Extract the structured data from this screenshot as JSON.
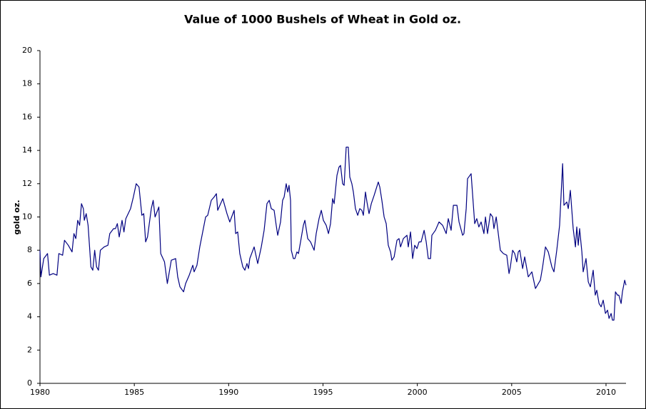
{
  "chart_data": {
    "type": "line",
    "title": "Value of 1000 Bushels of Wheat in Gold oz.",
    "y_label": "gold oz.",
    "color": "#000080",
    "xlim": [
      1980,
      2011.06
    ],
    "xticks": [
      1980,
      1985,
      1990,
      1995,
      2000,
      2005,
      2010
    ],
    "ylim": [
      0,
      20
    ],
    "yticks": [
      0,
      2,
      4,
      6,
      8,
      10,
      12,
      14,
      16,
      18,
      20
    ],
    "grid": false,
    "x": [
      1980.0,
      1980.05,
      1980.2,
      1980.4,
      1980.5,
      1980.7,
      1980.9,
      1981.0,
      1981.2,
      1981.3,
      1981.5,
      1981.7,
      1981.8,
      1981.9,
      1982.0,
      1982.1,
      1982.2,
      1982.3,
      1982.35,
      1982.45,
      1982.55,
      1982.7,
      1982.8,
      1982.9,
      1983.0,
      1983.1,
      1983.2,
      1983.4,
      1983.6,
      1983.7,
      1983.9,
      1984.0,
      1984.1,
      1984.2,
      1984.35,
      1984.45,
      1984.55,
      1984.8,
      1984.95,
      1985.1,
      1985.25,
      1985.4,
      1985.5,
      1985.6,
      1985.7,
      1985.9,
      1986.0,
      1986.1,
      1986.3,
      1986.4,
      1986.6,
      1986.75,
      1986.96,
      1987.19,
      1987.3,
      1987.42,
      1987.61,
      1987.72,
      1987.91,
      1988.1,
      1988.17,
      1988.32,
      1988.47,
      1988.78,
      1988.89,
      1989.08,
      1989.23,
      1989.35,
      1989.42,
      1989.69,
      1989.91,
      1990.06,
      1990.29,
      1990.37,
      1990.48,
      1990.59,
      1990.75,
      1990.86,
      1990.97,
      1991.05,
      1991.12,
      1991.35,
      1991.54,
      1991.73,
      1991.88,
      1992.03,
      1992.15,
      1992.26,
      1992.41,
      1992.52,
      1992.6,
      1992.75,
      1992.86,
      1992.94,
      1993.05,
      1993.13,
      1993.2,
      1993.28,
      1993.32,
      1993.43,
      1993.51,
      1993.62,
      1993.7,
      1993.81,
      1993.96,
      1994.04,
      1994.19,
      1994.34,
      1994.53,
      1994.64,
      1994.79,
      1994.91,
      1995.02,
      1995.17,
      1995.29,
      1995.4,
      1995.51,
      1995.59,
      1995.74,
      1995.85,
      1995.93,
      1996.04,
      1996.12,
      1996.23,
      1996.34,
      1996.42,
      1996.53,
      1996.61,
      1996.72,
      1996.84,
      1996.95,
      1997.06,
      1997.14,
      1997.25,
      1997.33,
      1997.44,
      1997.56,
      1997.71,
      1997.93,
      1998.01,
      1998.12,
      1998.24,
      1998.35,
      1998.46,
      1998.58,
      1998.65,
      1998.77,
      1998.92,
      1999.03,
      1999.11,
      1999.26,
      1999.45,
      1999.52,
      1999.64,
      1999.75,
      1999.86,
      1999.98,
      2000.09,
      2000.2,
      2000.36,
      2000.47,
      2000.58,
      2000.7,
      2000.77,
      2000.96,
      2001.15,
      2001.34,
      2001.53,
      2001.64,
      2001.79,
      2001.91,
      2002.1,
      2002.21,
      2002.4,
      2002.47,
      2002.59,
      2002.66,
      2002.85,
      2003.04,
      2003.15,
      2003.26,
      2003.38,
      2003.53,
      2003.61,
      2003.72,
      2003.87,
      2003.99,
      2004.06,
      2004.18,
      2004.29,
      2004.4,
      2004.56,
      2004.74,
      2004.86,
      2004.93,
      2005.05,
      2005.16,
      2005.27,
      2005.35,
      2005.43,
      2005.58,
      2005.69,
      2005.88,
      2006.07,
      2006.26,
      2006.52,
      2006.64,
      2006.79,
      2006.94,
      2007.13,
      2007.24,
      2007.39,
      2007.54,
      2007.7,
      2007.77,
      2007.92,
      2008.0,
      2008.11,
      2008.26,
      2008.38,
      2008.45,
      2008.53,
      2008.6,
      2008.72,
      2008.79,
      2008.94,
      2009.06,
      2009.17,
      2009.32,
      2009.43,
      2009.51,
      2009.63,
      2009.74,
      2009.85,
      2009.97,
      2010.08,
      2010.16,
      2010.27,
      2010.34,
      2010.42,
      2010.5,
      2010.61,
      2010.68,
      2010.8,
      2010.87,
      2010.99,
      2011.06
    ],
    "values": [
      8.0,
      6.4,
      7.5,
      7.8,
      6.5,
      6.6,
      6.5,
      7.8,
      7.7,
      8.6,
      8.3,
      7.9,
      9.0,
      8.7,
      9.8,
      9.5,
      10.8,
      10.5,
      9.8,
      10.2,
      9.5,
      7.0,
      6.8,
      8.0,
      7.0,
      6.8,
      8.0,
      8.2,
      8.3,
      9.0,
      9.3,
      9.3,
      9.6,
      8.8,
      9.8,
      9.1,
      9.9,
      10.5,
      11.2,
      12.0,
      11.8,
      10.1,
      10.2,
      8.5,
      8.8,
      10.5,
      11.0,
      10.0,
      10.6,
      7.8,
      7.3,
      6.0,
      7.4,
      7.5,
      6.4,
      5.8,
      5.5,
      6.0,
      6.5,
      7.1,
      6.7,
      7.1,
      8.2,
      10.0,
      10.1,
      11.0,
      11.2,
      11.4,
      10.4,
      11.1,
      10.2,
      9.7,
      10.4,
      9.0,
      9.1,
      7.8,
      7.0,
      6.8,
      7.2,
      6.9,
      7.5,
      8.2,
      7.2,
      8.2,
      9.2,
      10.8,
      11.0,
      10.5,
      10.4,
      9.5,
      8.9,
      9.7,
      11.0,
      11.2,
      12.0,
      11.5,
      11.9,
      11.0,
      8.0,
      7.5,
      7.5,
      7.9,
      7.8,
      8.5,
      9.5,
      9.8,
      8.7,
      8.5,
      8.0,
      9.0,
      9.9,
      10.4,
      9.8,
      9.5,
      9.0,
      9.6,
      11.1,
      10.8,
      12.5,
      13.0,
      13.1,
      12.0,
      11.9,
      14.2,
      14.2,
      12.4,
      12.0,
      11.5,
      10.5,
      10.1,
      10.5,
      10.4,
      10.1,
      11.5,
      10.9,
      10.2,
      10.8,
      11.3,
      12.1,
      11.8,
      11.0,
      10.0,
      9.6,
      8.3,
      7.9,
      7.4,
      7.6,
      8.6,
      8.7,
      8.2,
      8.7,
      8.9,
      8.2,
      9.1,
      7.5,
      8.3,
      8.1,
      8.5,
      8.5,
      9.2,
      8.5,
      7.5,
      7.5,
      8.9,
      9.2,
      9.7,
      9.5,
      9.0,
      9.9,
      9.2,
      10.7,
      10.7,
      9.7,
      8.9,
      9.0,
      10.5,
      12.3,
      12.6,
      9.6,
      9.9,
      9.4,
      9.7,
      9.0,
      10.0,
      9.0,
      10.2,
      10.0,
      9.3,
      10.0,
      9.0,
      8.0,
      7.8,
      7.7,
      6.6,
      7.0,
      8.0,
      7.8,
      7.3,
      7.9,
      8.0,
      6.9,
      7.6,
      6.4,
      6.7,
      5.7,
      6.2,
      7.0,
      8.2,
      7.9,
      7.0,
      6.7,
      8.0,
      9.5,
      13.2,
      10.7,
      10.9,
      10.5,
      11.6,
      9.3,
      8.2,
      9.4,
      8.3,
      9.3,
      7.9,
      6.7,
      7.5,
      6.1,
      5.8,
      6.8,
      5.3,
      5.6,
      4.8,
      4.6,
      5.0,
      4.2,
      4.4,
      3.9,
      4.2,
      3.8,
      3.8,
      5.5,
      5.3,
      5.3,
      4.8,
      5.5,
      6.2,
      5.9
    ]
  }
}
